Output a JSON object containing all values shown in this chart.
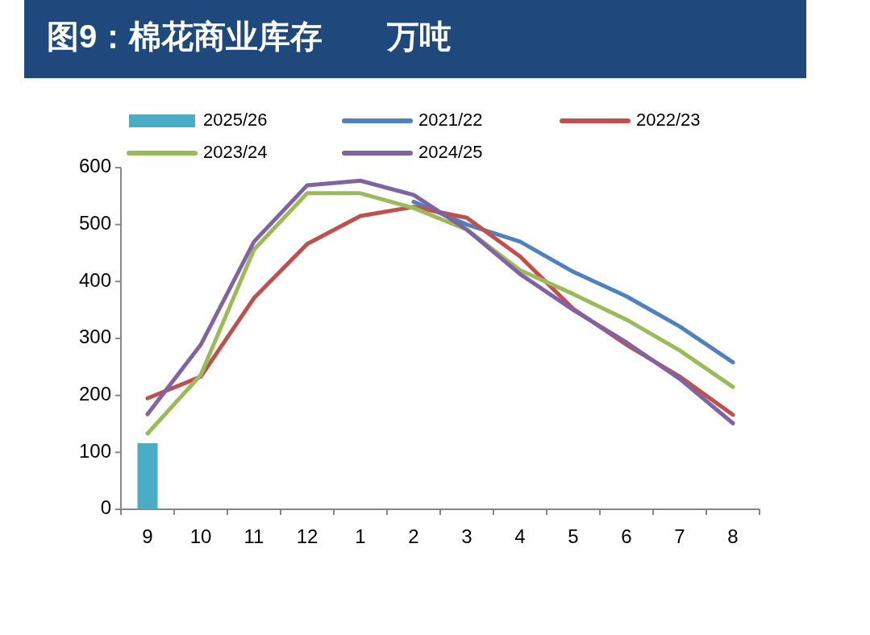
{
  "chart_data": {
    "type": "line",
    "title": "图9：棉花商业库存　　万吨",
    "categories": [
      "9",
      "10",
      "11",
      "12",
      "1",
      "2",
      "3",
      "4",
      "5",
      "6",
      "7",
      "8"
    ],
    "series": [
      {
        "name": "2025/26",
        "type": "bar",
        "color": "#4bacc6",
        "values": [
          116,
          null,
          null,
          null,
          null,
          null,
          null,
          null,
          null,
          null,
          null,
          null
        ]
      },
      {
        "name": "2021/22",
        "color": "#4f81bd",
        "values": [
          null,
          null,
          null,
          null,
          null,
          540,
          500,
          470,
          417,
          374,
          321,
          258
        ]
      },
      {
        "name": "2022/23",
        "color": "#c0504d",
        "values": [
          195,
          233,
          371,
          466,
          515,
          531,
          512,
          444,
          352,
          289,
          233,
          166
        ]
      },
      {
        "name": "2023/24",
        "color": "#9bbb59",
        "values": [
          133,
          236,
          456,
          555,
          555,
          529,
          491,
          420,
          378,
          333,
          279,
          215
        ]
      },
      {
        "name": "2024/25",
        "color": "#8064a2",
        "values": [
          167,
          289,
          470,
          569,
          577,
          552,
          491,
          413,
          350,
          293,
          229,
          151
        ]
      }
    ],
    "ylim": [
      0,
      600
    ],
    "yticks": [
      0,
      100,
      200,
      300,
      400,
      500,
      600
    ],
    "legend": "top"
  }
}
